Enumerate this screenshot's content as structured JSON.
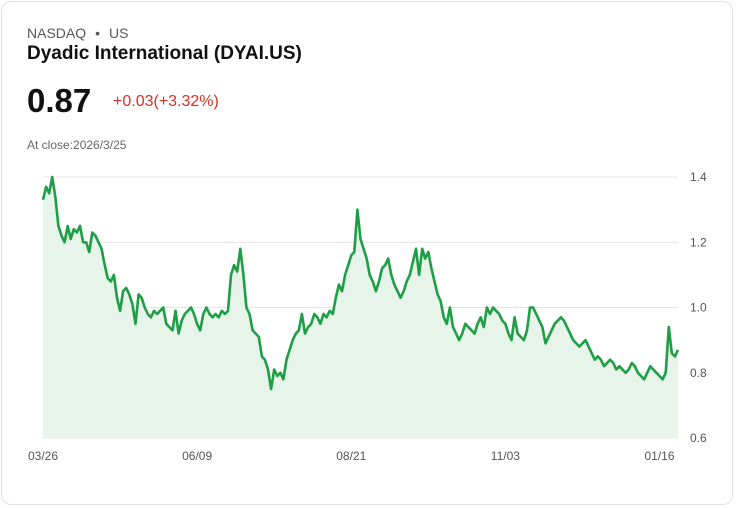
{
  "header": {
    "exchange": "NASDAQ",
    "separator": "•",
    "region": "US",
    "name": "Dyadic International (DYAI.US)",
    "price": "0.87",
    "change": "+0.03(+3.32%)",
    "close_label": "At close:",
    "close_date": "2026/3/25"
  },
  "colors": {
    "line": "#1e9e45",
    "fill": "#e6f4ea",
    "grid": "#e4e4e4",
    "change": "#d93025"
  },
  "chart_data": {
    "type": "area",
    "title": "Dyadic International (DYAI.US)",
    "xlabel": "",
    "ylabel": "",
    "ylim": [
      0.6,
      1.4
    ],
    "y_ticks": [
      1.4,
      1.2,
      1.0,
      0.8,
      0.6
    ],
    "y_tick_labels": [
      "1.4",
      "1.2",
      "1.0",
      "0.8",
      "0.6"
    ],
    "x_tick_labels": [
      "03/26",
      "06/09",
      "08/21",
      "11/03",
      "01/16"
    ],
    "x_tick_index": [
      0,
      50,
      100,
      150,
      200
    ],
    "values": [
      1.33,
      1.37,
      1.35,
      1.4,
      1.34,
      1.25,
      1.22,
      1.2,
      1.25,
      1.21,
      1.24,
      1.23,
      1.25,
      1.2,
      1.2,
      1.17,
      1.23,
      1.22,
      1.2,
      1.18,
      1.13,
      1.09,
      1.08,
      1.1,
      1.03,
      0.99,
      1.05,
      1.06,
      1.04,
      1.01,
      0.95,
      1.04,
      1.03,
      1.0,
      0.98,
      0.97,
      0.99,
      0.98,
      0.99,
      1.0,
      0.95,
      0.94,
      0.93,
      0.99,
      0.92,
      0.96,
      0.98,
      0.99,
      1.0,
      0.98,
      0.95,
      0.93,
      0.98,
      1.0,
      0.98,
      0.97,
      0.98,
      0.97,
      0.99,
      0.98,
      0.99,
      1.1,
      1.13,
      1.11,
      1.18,
      1.1,
      1.0,
      0.98,
      0.93,
      0.92,
      0.91,
      0.85,
      0.84,
      0.81,
      0.75,
      0.81,
      0.79,
      0.8,
      0.78,
      0.84,
      0.87,
      0.9,
      0.92,
      0.93,
      0.98,
      0.92,
      0.94,
      0.95,
      0.98,
      0.97,
      0.95,
      0.98,
      0.97,
      0.99,
      0.98,
      1.03,
      1.07,
      1.05,
      1.1,
      1.13,
      1.16,
      1.17,
      1.3,
      1.21,
      1.18,
      1.15,
      1.1,
      1.08,
      1.05,
      1.08,
      1.12,
      1.13,
      1.15,
      1.1,
      1.07,
      1.05,
      1.03,
      1.05,
      1.08,
      1.1,
      1.14,
      1.18,
      1.1,
      1.18,
      1.15,
      1.17,
      1.12,
      1.08,
      1.04,
      1.02,
      0.97,
      0.95,
      1.0,
      0.94,
      0.92,
      0.9,
      0.92,
      0.95,
      0.94,
      0.93,
      0.92,
      0.95,
      0.97,
      0.94,
      1.0,
      0.98,
      1.0,
      0.99,
      0.98,
      0.96,
      0.95,
      0.92,
      0.9,
      0.97,
      0.92,
      0.91,
      0.9,
      0.93,
      1.0,
      1.0,
      0.98,
      0.96,
      0.94,
      0.89,
      0.91,
      0.93,
      0.95,
      0.96,
      0.97,
      0.96,
      0.94,
      0.92,
      0.9,
      0.89,
      0.88,
      0.89,
      0.9,
      0.88,
      0.86,
      0.84,
      0.85,
      0.84,
      0.82,
      0.83,
      0.84,
      0.83,
      0.81,
      0.82,
      0.81,
      0.8,
      0.81,
      0.83,
      0.82,
      0.8,
      0.79,
      0.78,
      0.8,
      0.82,
      0.81,
      0.8,
      0.79,
      0.78,
      0.8,
      0.94,
      0.86,
      0.85,
      0.87
    ]
  }
}
